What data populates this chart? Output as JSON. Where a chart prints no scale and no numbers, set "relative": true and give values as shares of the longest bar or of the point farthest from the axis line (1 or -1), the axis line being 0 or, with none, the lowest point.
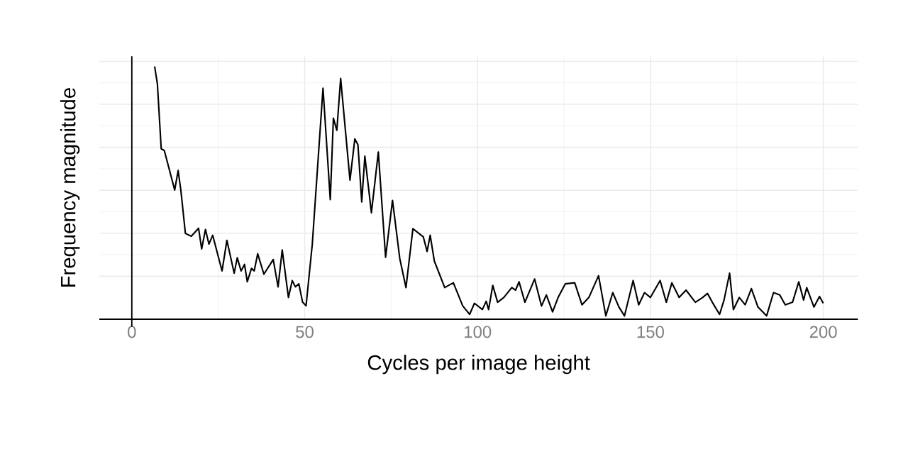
{
  "chart_data": {
    "type": "line",
    "relative": true,
    "xlabel": "Cycles per image height",
    "ylabel": "Frequency magnitude",
    "color": "#000000",
    "grid": true,
    "marker": "none",
    "line_style": "solid",
    "xlim": [
      -9.4,
      210
    ],
    "xticks": [
      0,
      50,
      100,
      150,
      200
    ],
    "x": [
      6.6,
      7.4,
      8.5,
      9.4,
      12.4,
      13.4,
      14.2,
      15.5,
      17.2,
      19.3,
      20.2,
      21.3,
      22.3,
      23.4,
      26.1,
      27.5,
      29.6,
      30.5,
      31.6,
      32.6,
      33.4,
      34.6,
      35.4,
      36.4,
      38.2,
      40.9,
      42.3,
      43.5,
      45.3,
      46.4,
      47.3,
      48.3,
      49.4,
      50.4,
      52.2,
      55.3,
      57.4,
      58.3,
      59.3,
      60.4,
      63.1,
      64.5,
      65.4,
      66.5,
      67.4,
      69.3,
      71.3,
      73.4,
      75.4,
      77.5,
      79.3,
      81.3,
      84.3,
      85.4,
      86.3,
      87.5,
      90.5,
      93,
      95.7,
      97.7,
      99.1,
      101.4,
      102.5,
      103.2,
      104.4,
      105.8,
      107.6,
      109.9,
      111,
      112,
      113.7,
      116.5,
      118.5,
      119.9,
      121.7,
      123.3,
      125.4,
      128.1,
      130.2,
      132.2,
      135,
      137.1,
      139.1,
      140.9,
      142.5,
      145,
      146.6,
      148.3,
      150,
      152.8,
      154.6,
      156.2,
      158.3,
      160.3,
      163,
      165.1,
      166.5,
      167.9,
      170,
      171.3,
      172.9,
      174,
      175.7,
      177.4,
      179.2,
      181.1,
      183.6,
      185.6,
      187.4,
      189,
      191.1,
      192.9,
      194.3,
      195.2,
      197.3,
      198.9,
      200
    ],
    "values": [
      1.0,
      0.93,
      0.674,
      0.667,
      0.511,
      0.588,
      0.508,
      0.339,
      0.328,
      0.36,
      0.278,
      0.355,
      0.297,
      0.332,
      0.191,
      0.312,
      0.182,
      0.243,
      0.191,
      0.217,
      0.148,
      0.201,
      0.191,
      0.259,
      0.178,
      0.236,
      0.128,
      0.274,
      0.086,
      0.153,
      0.128,
      0.14,
      0.067,
      0.053,
      0.297,
      0.914,
      0.473,
      0.795,
      0.747,
      0.952,
      0.55,
      0.713,
      0.69,
      0.464,
      0.645,
      0.421,
      0.661,
      0.245,
      0.47,
      0.24,
      0.125,
      0.358,
      0.326,
      0.268,
      0.332,
      0.23,
      0.125,
      0.144,
      0.053,
      0.019,
      0.063,
      0.038,
      0.071,
      0.038,
      0.134,
      0.067,
      0.086,
      0.125,
      0.115,
      0.148,
      0.067,
      0.159,
      0.052,
      0.096,
      0.029,
      0.086,
      0.14,
      0.144,
      0.057,
      0.086,
      0.172,
      0.013,
      0.105,
      0.048,
      0.013,
      0.153,
      0.057,
      0.105,
      0.086,
      0.153,
      0.067,
      0.144,
      0.086,
      0.115,
      0.067,
      0.086,
      0.102,
      0.067,
      0.019,
      0.076,
      0.182,
      0.038,
      0.086,
      0.057,
      0.121,
      0.048,
      0.013,
      0.105,
      0.096,
      0.057,
      0.067,
      0.148,
      0.076,
      0.125,
      0.048,
      0.09,
      0.063
    ]
  }
}
